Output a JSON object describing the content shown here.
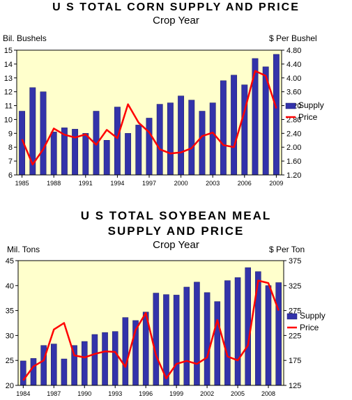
{
  "chart_data": [
    {
      "type": "bar",
      "title": "U S TOTAL CORN SUPPLY AND PRICE",
      "subtitle": "Crop Year",
      "ylabel_left": "Bil. Bushels",
      "ylabel_right": "$ Per Bushel",
      "x": [
        1985,
        1986,
        1987,
        1988,
        1989,
        1990,
        1991,
        1992,
        1993,
        1994,
        1995,
        1996,
        1997,
        1998,
        1999,
        2000,
        2001,
        2002,
        2003,
        2004,
        2005,
        2006,
        2007,
        2008,
        2009
      ],
      "xticks": [
        "1985",
        "1988",
        "1991",
        "1994",
        "1997",
        "2000",
        "2003",
        "2006",
        "2009"
      ],
      "ylim_left": [
        6,
        15
      ],
      "yticks_left": [
        "6",
        "7",
        "8",
        "9",
        "10",
        "11",
        "12",
        "13",
        "14",
        "15"
      ],
      "ylim_right": [
        1.2,
        4.8
      ],
      "yticks_right": [
        "1.20",
        "1.60",
        "2.00",
        "2.40",
        "2.80",
        "3.20",
        "3.60",
        "4.00",
        "4.40",
        "4.80"
      ],
      "series": [
        {
          "name": "Supply",
          "axis": "left",
          "type": "bar",
          "color": "#3333aa",
          "values": [
            10.6,
            12.3,
            12.0,
            9.1,
            9.4,
            9.3,
            9.0,
            10.6,
            8.5,
            10.9,
            9.0,
            9.6,
            10.1,
            11.1,
            11.2,
            11.7,
            11.4,
            10.6,
            11.2,
            12.8,
            13.2,
            12.5,
            14.4,
            13.8,
            14.7
          ]
        },
        {
          "name": "Price",
          "axis": "right",
          "type": "line",
          "color": "#ff0000",
          "values": [
            2.23,
            1.5,
            1.94,
            2.54,
            2.36,
            2.28,
            2.37,
            2.07,
            2.5,
            2.26,
            3.24,
            2.71,
            2.43,
            1.94,
            1.82,
            1.85,
            1.97,
            2.32,
            2.42,
            2.06,
            2.0,
            3.04,
            4.2,
            4.06,
            3.12
          ]
        }
      ],
      "legend": [
        "Supply",
        "Price"
      ],
      "legend_position": "right",
      "plot_background": "#ffffcc"
    },
    {
      "type": "bar",
      "title": "U S TOTAL SOYBEAN MEAL",
      "title_line2": "SUPPLY AND PRICE",
      "subtitle": "Crop Year",
      "ylabel_left": "Mil. Tons",
      "ylabel_right": "$ Per Ton",
      "x": [
        1984,
        1985,
        1986,
        1987,
        1988,
        1989,
        1990,
        1991,
        1992,
        1993,
        1994,
        1995,
        1996,
        1997,
        1998,
        1999,
        2000,
        2001,
        2002,
        2003,
        2004,
        2005,
        2006,
        2007,
        2008,
        2009
      ],
      "xticks": [
        "1984",
        "1987",
        "1990",
        "1993",
        "1996",
        "1999",
        "2002",
        "2005",
        "2008"
      ],
      "ylim_left": [
        20,
        45
      ],
      "yticks_left": [
        "20",
        "25",
        "30",
        "35",
        "40",
        "45"
      ],
      "ylim_right": [
        125,
        375
      ],
      "yticks_right": [
        "125",
        "175",
        "225",
        "275",
        "325",
        "375"
      ],
      "series": [
        {
          "name": "Supply",
          "axis": "left",
          "type": "bar",
          "color": "#3333aa",
          "values": [
            24.9,
            25.4,
            28.0,
            28.3,
            25.3,
            28.0,
            28.8,
            30.2,
            30.6,
            30.8,
            33.6,
            33.0,
            34.7,
            38.5,
            38.2,
            38.1,
            39.7,
            40.7,
            38.6,
            36.8,
            41.0,
            41.6,
            43.6,
            42.8,
            40.0,
            40.6
          ]
        },
        {
          "name": "Price",
          "axis": "right",
          "type": "line",
          "color": "#ff0000",
          "values": [
            135,
            163,
            175,
            237,
            250,
            185,
            181,
            188,
            193,
            192,
            162,
            236,
            270,
            185,
            139,
            168,
            174,
            168,
            181,
            256,
            183,
            175,
            205,
            335,
            330,
            275
          ]
        }
      ],
      "legend": [
        "Supply",
        "Price"
      ],
      "legend_position": "right",
      "plot_background": "#ffffcc"
    }
  ]
}
